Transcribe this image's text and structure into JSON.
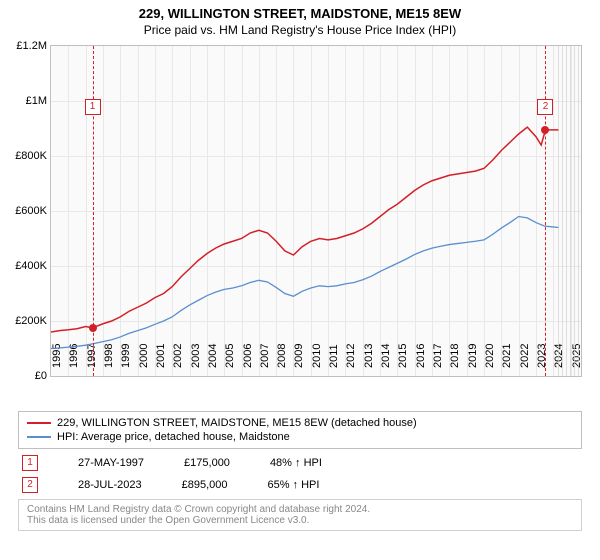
{
  "title": {
    "line1": "229, WILLINGTON STREET, MAIDSTONE, ME15 8EW",
    "line2": "Price paid vs. HM Land Registry's House Price Index (HPI)"
  },
  "chart": {
    "type": "line",
    "background_color": "#fafafa",
    "grid_color": "#e8e8e8",
    "border_color": "#bfbfbf",
    "x": {
      "min": 1995,
      "max": 2025.6,
      "ticks": [
        1995,
        1996,
        1997,
        1998,
        1999,
        2000,
        2001,
        2002,
        2003,
        2004,
        2005,
        2006,
        2007,
        2008,
        2009,
        2010,
        2011,
        2012,
        2013,
        2014,
        2015,
        2016,
        2017,
        2018,
        2019,
        2020,
        2021,
        2022,
        2023,
        2024,
        2025
      ]
    },
    "y": {
      "min": 0,
      "max": 1200000,
      "ticks": [
        {
          "v": 0,
          "label": "£0"
        },
        {
          "v": 200000,
          "label": "£200K"
        },
        {
          "v": 400000,
          "label": "£400K"
        },
        {
          "v": 600000,
          "label": "£600K"
        },
        {
          "v": 800000,
          "label": "£800K"
        },
        {
          "v": 1000000,
          "label": "£1M"
        },
        {
          "v": 1200000,
          "label": "£1.2M"
        }
      ]
    },
    "future_hatch_from": 2024.3,
    "series": [
      {
        "name": "229, WILLINGTON STREET, MAIDSTONE, ME15 8EW (detached house)",
        "color": "#d32028",
        "width": 1.5,
        "points": [
          [
            1995,
            160000
          ],
          [
            1995.5,
            165000
          ],
          [
            1996,
            168000
          ],
          [
            1996.5,
            172000
          ],
          [
            1997,
            180000
          ],
          [
            1997.4,
            175000
          ],
          [
            1998,
            190000
          ],
          [
            1998.5,
            200000
          ],
          [
            1999,
            215000
          ],
          [
            1999.5,
            235000
          ],
          [
            2000,
            250000
          ],
          [
            2000.5,
            265000
          ],
          [
            2001,
            285000
          ],
          [
            2001.5,
            300000
          ],
          [
            2002,
            325000
          ],
          [
            2002.5,
            360000
          ],
          [
            2003,
            390000
          ],
          [
            2003.5,
            420000
          ],
          [
            2004,
            445000
          ],
          [
            2004.5,
            465000
          ],
          [
            2005,
            480000
          ],
          [
            2005.5,
            490000
          ],
          [
            2006,
            500000
          ],
          [
            2006.5,
            520000
          ],
          [
            2007,
            530000
          ],
          [
            2007.5,
            520000
          ],
          [
            2008,
            490000
          ],
          [
            2008.5,
            455000
          ],
          [
            2009,
            440000
          ],
          [
            2009.5,
            470000
          ],
          [
            2010,
            490000
          ],
          [
            2010.5,
            500000
          ],
          [
            2011,
            495000
          ],
          [
            2011.5,
            500000
          ],
          [
            2012,
            510000
          ],
          [
            2012.5,
            520000
          ],
          [
            2013,
            535000
          ],
          [
            2013.5,
            555000
          ],
          [
            2014,
            580000
          ],
          [
            2014.5,
            605000
          ],
          [
            2015,
            625000
          ],
          [
            2015.5,
            650000
          ],
          [
            2016,
            675000
          ],
          [
            2016.5,
            695000
          ],
          [
            2017,
            710000
          ],
          [
            2017.5,
            720000
          ],
          [
            2018,
            730000
          ],
          [
            2018.5,
            735000
          ],
          [
            2019,
            740000
          ],
          [
            2019.5,
            745000
          ],
          [
            2020,
            755000
          ],
          [
            2020.5,
            785000
          ],
          [
            2021,
            820000
          ],
          [
            2021.5,
            850000
          ],
          [
            2022,
            880000
          ],
          [
            2022.5,
            905000
          ],
          [
            2023,
            870000
          ],
          [
            2023.3,
            840000
          ],
          [
            2023.55,
            895000
          ],
          [
            2024,
            895000
          ],
          [
            2024.3,
            895000
          ]
        ]
      },
      {
        "name": "HPI: Average price, detached house, Maidstone",
        "color": "#5a8fcf",
        "width": 1.3,
        "points": [
          [
            1995,
            100000
          ],
          [
            1995.5,
            102000
          ],
          [
            1996,
            105000
          ],
          [
            1996.5,
            108000
          ],
          [
            1997,
            112000
          ],
          [
            1997.5,
            118000
          ],
          [
            1998,
            125000
          ],
          [
            1998.5,
            132000
          ],
          [
            1999,
            142000
          ],
          [
            1999.5,
            155000
          ],
          [
            2000,
            165000
          ],
          [
            2000.5,
            175000
          ],
          [
            2001,
            188000
          ],
          [
            2001.5,
            200000
          ],
          [
            2002,
            215000
          ],
          [
            2002.5,
            238000
          ],
          [
            2003,
            258000
          ],
          [
            2003.5,
            275000
          ],
          [
            2004,
            292000
          ],
          [
            2004.5,
            305000
          ],
          [
            2005,
            315000
          ],
          [
            2005.5,
            320000
          ],
          [
            2006,
            328000
          ],
          [
            2006.5,
            340000
          ],
          [
            2007,
            348000
          ],
          [
            2007.5,
            342000
          ],
          [
            2008,
            322000
          ],
          [
            2008.5,
            300000
          ],
          [
            2009,
            290000
          ],
          [
            2009.5,
            308000
          ],
          [
            2010,
            320000
          ],
          [
            2010.5,
            328000
          ],
          [
            2011,
            325000
          ],
          [
            2011.5,
            328000
          ],
          [
            2012,
            335000
          ],
          [
            2012.5,
            340000
          ],
          [
            2013,
            350000
          ],
          [
            2013.5,
            363000
          ],
          [
            2014,
            380000
          ],
          [
            2014.5,
            395000
          ],
          [
            2015,
            410000
          ],
          [
            2015.5,
            425000
          ],
          [
            2016,
            442000
          ],
          [
            2016.5,
            455000
          ],
          [
            2017,
            465000
          ],
          [
            2017.5,
            472000
          ],
          [
            2018,
            478000
          ],
          [
            2018.5,
            482000
          ],
          [
            2019,
            486000
          ],
          [
            2019.5,
            490000
          ],
          [
            2020,
            495000
          ],
          [
            2020.5,
            515000
          ],
          [
            2021,
            538000
          ],
          [
            2021.5,
            558000
          ],
          [
            2022,
            580000
          ],
          [
            2022.5,
            575000
          ],
          [
            2023,
            558000
          ],
          [
            2023.5,
            545000
          ],
          [
            2024,
            542000
          ],
          [
            2024.3,
            540000
          ]
        ]
      }
    ],
    "markers": [
      {
        "n": "1",
        "x": 1997.4,
        "y": 175000,
        "box_y": 980000,
        "color": "#d32028"
      },
      {
        "n": "2",
        "x": 2023.55,
        "y": 895000,
        "box_y": 980000,
        "color": "#d32028"
      }
    ]
  },
  "legend": {
    "items": [
      {
        "color": "#d32028",
        "label": "229, WILLINGTON STREET, MAIDSTONE, ME15 8EW (detached house)"
      },
      {
        "color": "#5a8fcf",
        "label": "HPI: Average price, detached house, Maidstone"
      }
    ]
  },
  "transactions": [
    {
      "n": "1",
      "color": "#d32028",
      "date": "27-MAY-1997",
      "price": "£175,000",
      "delta": "48% ↑ HPI"
    },
    {
      "n": "2",
      "color": "#d32028",
      "date": "28-JUL-2023",
      "price": "£895,000",
      "delta": "65% ↑ HPI"
    }
  ],
  "footer": {
    "line1": "Contains HM Land Registry data © Crown copyright and database right 2024.",
    "line2": "This data is licensed under the Open Government Licence v3.0."
  }
}
